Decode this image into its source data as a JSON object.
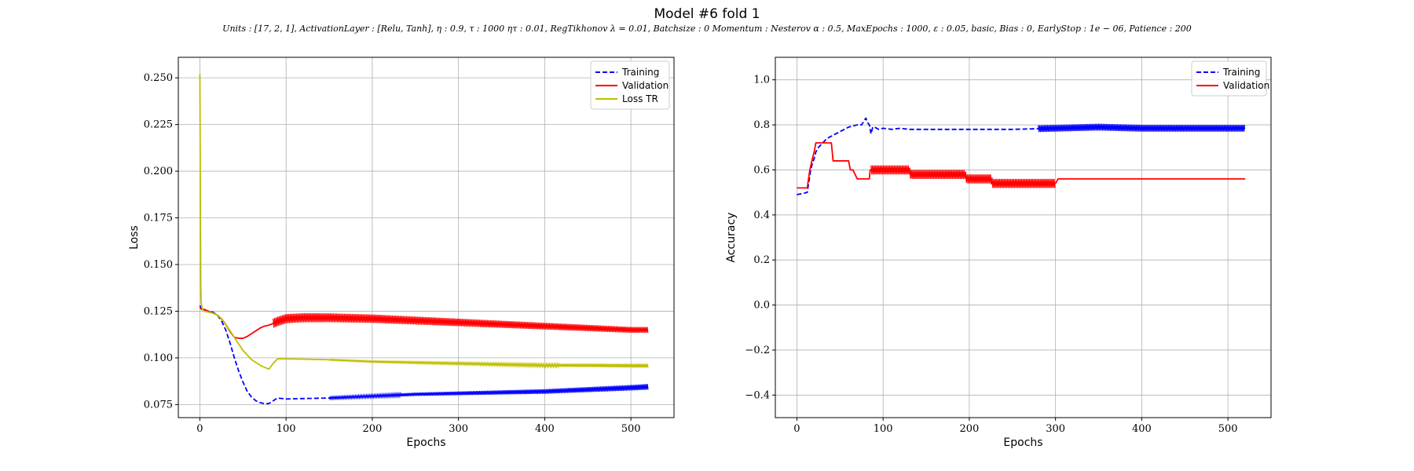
{
  "figure": {
    "title": "Model #6 fold 1",
    "subtitle": "Units : [17, 2, 1], ActivationLayer : [Relu, Tanh], η : 0.9, τ : 1000 ητ : 0.01, RegTikhonov λ = 0.01, Batchsize : 0 Momentum : Nesterov α : 0.5, MaxEpochs : 1000, ε : 0.05, basic, Bias : 0, EarlyStop : 1e − 06, Patience : 200"
  },
  "colors": {
    "training": "#0000ff",
    "validation": "#ff0000",
    "loss_tr": "#bfbf00",
    "grid": "#b0b0b0"
  },
  "chart_data": [
    {
      "type": "line",
      "xlabel": "Epochs",
      "ylabel": "Loss",
      "xlim": [
        -25,
        550
      ],
      "ylim": [
        0.068,
        0.261
      ],
      "xticks": [
        0,
        100,
        200,
        300,
        400,
        500
      ],
      "yticks": [
        0.075,
        0.1,
        0.125,
        0.15,
        0.175,
        0.2,
        0.225,
        0.25
      ],
      "ytick_labels": [
        "0.075",
        "0.100",
        "0.125",
        "0.150",
        "0.175",
        "0.200",
        "0.225",
        "0.250"
      ],
      "grid": true,
      "legend_position": "top-right",
      "series": [
        {
          "name": "Training",
          "style": "dashed",
          "color": "#0000ff",
          "x": [
            0,
            1,
            2,
            5,
            10,
            15,
            20,
            25,
            30,
            35,
            40,
            45,
            50,
            55,
            60,
            65,
            70,
            75,
            80,
            85,
            90,
            100,
            150,
            200,
            250,
            300,
            350,
            400,
            450,
            500,
            520
          ],
          "y": [
            0.128,
            0.127,
            0.126,
            0.1255,
            0.125,
            0.1245,
            0.123,
            0.12,
            0.115,
            0.108,
            0.1,
            0.093,
            0.087,
            0.082,
            0.079,
            0.077,
            0.076,
            0.0755,
            0.0755,
            0.077,
            0.0785,
            0.078,
            0.0785,
            0.0795,
            0.0805,
            0.081,
            0.0815,
            0.082,
            0.083,
            0.084,
            0.0845
          ],
          "band": {
            "x_start": 150,
            "x_end": 520,
            "width_start": 0.0012,
            "width_end": 0.003
          }
        },
        {
          "name": "Validation",
          "style": "solid",
          "color": "#ff0000",
          "x": [
            0,
            2,
            5,
            10,
            15,
            20,
            25,
            30,
            35,
            40,
            45,
            50,
            55,
            60,
            65,
            70,
            75,
            80,
            85,
            90,
            100,
            120,
            150,
            200,
            250,
            300,
            350,
            400,
            450,
            500,
            520
          ],
          "y": [
            0.127,
            0.126,
            0.126,
            0.125,
            0.124,
            0.123,
            0.121,
            0.118,
            0.114,
            0.111,
            0.1105,
            0.1105,
            0.1115,
            0.113,
            0.1145,
            0.116,
            0.117,
            0.1175,
            0.1185,
            0.1195,
            0.121,
            0.1215,
            0.1215,
            0.121,
            0.12,
            0.119,
            0.118,
            0.117,
            0.116,
            0.115,
            0.115
          ],
          "band": {
            "x_start": 85,
            "x_end": 520,
            "width_start": 0.005,
            "width_end": 0.003
          }
        },
        {
          "name": "Loss TR",
          "style": "solid",
          "color": "#bfbf00",
          "x": [
            0,
            0.5,
            1,
            1.5,
            2,
            3,
            4,
            5,
            10,
            15,
            20,
            25,
            30,
            40,
            50,
            60,
            70,
            80,
            85,
            90,
            100,
            150,
            200,
            250,
            300,
            350,
            400,
            450,
            500,
            520
          ],
          "y": [
            0.252,
            0.2,
            0.14,
            0.13,
            0.128,
            0.126,
            0.1255,
            0.125,
            0.1245,
            0.124,
            0.123,
            0.121,
            0.118,
            0.111,
            0.104,
            0.099,
            0.096,
            0.094,
            0.097,
            0.0995,
            0.0995,
            0.099,
            0.098,
            0.0975,
            0.097,
            0.0965,
            0.096,
            0.096,
            0.0958,
            0.0958
          ],
          "band": {
            "x_start": 150,
            "x_end": 520,
            "width_start": 0.0006,
            "width_end": 0.002
          }
        }
      ]
    },
    {
      "type": "line",
      "xlabel": "Epochs",
      "ylabel": "Accuracy",
      "xlim": [
        -25,
        550
      ],
      "ylim": [
        -0.5,
        1.1
      ],
      "xticks": [
        0,
        100,
        200,
        300,
        400,
        500
      ],
      "yticks": [
        -0.4,
        -0.2,
        0.0,
        0.2,
        0.4,
        0.6,
        0.8,
        1.0
      ],
      "ytick_labels": [
        "−0.4",
        "−0.2",
        "0.0",
        "0.2",
        "0.4",
        "0.6",
        "0.8",
        "1.0"
      ],
      "grid": true,
      "legend_position": "top-right",
      "series": [
        {
          "name": "Training",
          "style": "dashed",
          "color": "#0000ff",
          "x": [
            0,
            12,
            14,
            16,
            18,
            20,
            22,
            25,
            30,
            35,
            40,
            45,
            50,
            55,
            60,
            65,
            70,
            75,
            80,
            82,
            84,
            86,
            88,
            90,
            95,
            100,
            110,
            120,
            130,
            150,
            200,
            250,
            300,
            350,
            400,
            450,
            500,
            520
          ],
          "y": [
            0.49,
            0.5,
            0.55,
            0.6,
            0.63,
            0.65,
            0.68,
            0.7,
            0.72,
            0.74,
            0.75,
            0.76,
            0.77,
            0.78,
            0.79,
            0.795,
            0.8,
            0.8,
            0.83,
            0.81,
            0.8,
            0.76,
            0.79,
            0.79,
            0.78,
            0.785,
            0.78,
            0.785,
            0.78,
            0.78,
            0.78,
            0.78,
            0.785,
            0.79,
            0.785,
            0.785,
            0.785,
            0.785
          ],
          "band": {
            "x_start": 280,
            "x_end": 520,
            "width_start": 0.03,
            "width_end": 0.03
          }
        },
        {
          "name": "Validation",
          "style": "solid",
          "color": "#ff0000",
          "x": [
            0,
            12,
            15,
            18,
            20,
            22,
            25,
            30,
            35,
            40,
            42,
            45,
            50,
            55,
            60,
            62,
            65,
            70,
            75,
            80,
            84,
            85,
            86,
            88,
            90,
            100,
            130,
            132,
            150,
            195,
            197,
            225,
            227,
            300,
            303,
            320,
            520
          ],
          "y": [
            0.52,
            0.52,
            0.6,
            0.65,
            0.68,
            0.72,
            0.72,
            0.72,
            0.72,
            0.72,
            0.64,
            0.64,
            0.64,
            0.64,
            0.64,
            0.6,
            0.6,
            0.56,
            0.56,
            0.56,
            0.56,
            0.6,
            0.6,
            0.6,
            0.6,
            0.6,
            0.6,
            0.58,
            0.58,
            0.58,
            0.56,
            0.56,
            0.54,
            0.54,
            0.56,
            0.56,
            0.56
          ],
          "band": {
            "x_start": 86,
            "x_end": 300,
            "width_start": 0.04,
            "width_end": 0.04
          }
        }
      ]
    }
  ]
}
